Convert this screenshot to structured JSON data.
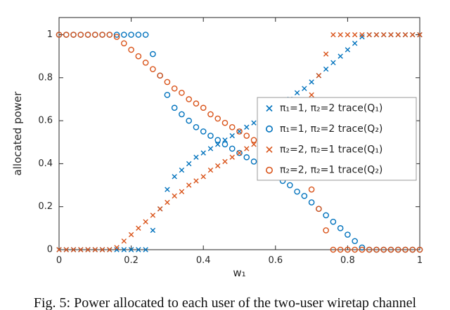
{
  "figure": {
    "caption": "Fig. 5: Power allocated to each user of the two-user wiretap channel"
  },
  "chart_data": {
    "type": "scatter",
    "title": "",
    "xlabel": "w₁",
    "ylabel": "allocated power",
    "xlim": [
      0,
      1
    ],
    "ylim": [
      0,
      1.08
    ],
    "x_ticks": [
      "0",
      "0.2",
      "0.4",
      "0.6",
      "0.8",
      "1"
    ],
    "y_ticks": [
      "0",
      "0.2",
      "0.4",
      "0.6",
      "0.8",
      "1"
    ],
    "grid": false,
    "legend_position": "middle-right",
    "axis_color": "#262626",
    "x": [
      0,
      0.02,
      0.04,
      0.06,
      0.08,
      0.1,
      0.12,
      0.14,
      0.16,
      0.18,
      0.2,
      0.22,
      0.24,
      0.26,
      0.28,
      0.3,
      0.32,
      0.34,
      0.36,
      0.38,
      0.4,
      0.42,
      0.44,
      0.46,
      0.48,
      0.5,
      0.52,
      0.54,
      0.56,
      0.58,
      0.6,
      0.62,
      0.64,
      0.66,
      0.68,
      0.7,
      0.72,
      0.74,
      0.76,
      0.78,
      0.8,
      0.82,
      0.84,
      0.86,
      0.88,
      0.9,
      0.92,
      0.94,
      0.96,
      0.98,
      1
    ],
    "series": [
      {
        "name": "π₁=1, π₂=2 trace(Q₁)",
        "marker": "x",
        "color": "#0072BD",
        "values": [
          0,
          0,
          0,
          0,
          0,
          0,
          0,
          0,
          0,
          0,
          0,
          0,
          0,
          0.09,
          0.19,
          0.28,
          0.34,
          0.37,
          0.4,
          0.43,
          0.45,
          0.47,
          0.49,
          0.51,
          0.53,
          0.55,
          0.57,
          0.59,
          0.61,
          0.63,
          0.66,
          0.68,
          0.7,
          0.73,
          0.75,
          0.78,
          0.81,
          0.84,
          0.87,
          0.9,
          0.93,
          0.96,
          0.99,
          1,
          1,
          1,
          1,
          1,
          1,
          1,
          1
        ]
      },
      {
        "name": "π₁=1, π₂=2 trace(Q₂)",
        "marker": "o",
        "color": "#0072BD",
        "values": [
          1,
          1,
          1,
          1,
          1,
          1,
          1,
          1,
          1,
          1,
          1,
          1,
          1,
          0.91,
          0.81,
          0.72,
          0.66,
          0.63,
          0.6,
          0.57,
          0.55,
          0.53,
          0.51,
          0.49,
          0.47,
          0.45,
          0.43,
          0.41,
          0.39,
          0.37,
          0.34,
          0.32,
          0.3,
          0.27,
          0.25,
          0.22,
          0.19,
          0.16,
          0.13,
          0.1,
          0.07,
          0.04,
          0.01,
          0,
          0,
          0,
          0,
          0,
          0,
          0,
          0
        ]
      },
      {
        "name": "π₂=2, π₂=1 trace(Q₁)",
        "marker": "x",
        "color": "#D95319",
        "values": [
          0,
          0,
          0,
          0,
          0,
          0,
          0,
          0,
          0.01,
          0.04,
          0.07,
          0.1,
          0.13,
          0.16,
          0.19,
          0.22,
          0.25,
          0.27,
          0.3,
          0.32,
          0.34,
          0.37,
          0.39,
          0.41,
          0.43,
          0.45,
          0.47,
          0.49,
          0.51,
          0.53,
          0.55,
          0.57,
          0.6,
          0.63,
          0.66,
          0.72,
          0.81,
          0.91,
          1,
          1,
          1,
          1,
          1,
          1,
          1,
          1,
          1,
          1,
          1,
          1,
          1
        ]
      },
      {
        "name": "π₂=2, π₂=1 trace(Q₂)",
        "marker": "o",
        "color": "#D95319",
        "values": [
          1,
          1,
          1,
          1,
          1,
          1,
          1,
          1,
          0.99,
          0.96,
          0.93,
          0.9,
          0.87,
          0.84,
          0.81,
          0.78,
          0.75,
          0.73,
          0.7,
          0.68,
          0.66,
          0.63,
          0.61,
          0.59,
          0.57,
          0.55,
          0.53,
          0.51,
          0.49,
          0.47,
          0.45,
          0.43,
          0.4,
          0.37,
          0.34,
          0.28,
          0.19,
          0.09,
          0,
          0,
          0,
          0,
          0,
          0,
          0,
          0,
          0,
          0,
          0,
          0,
          0
        ]
      }
    ]
  }
}
